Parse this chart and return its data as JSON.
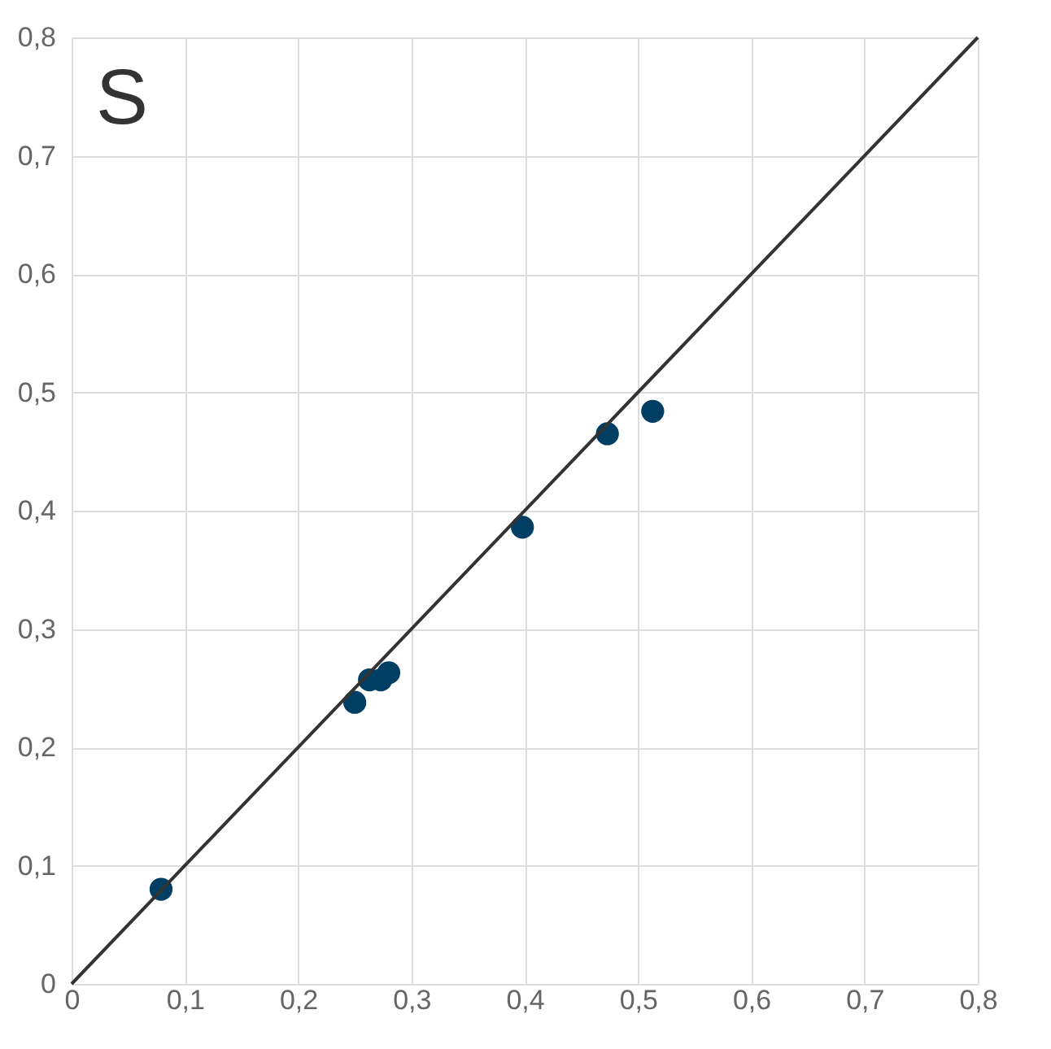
{
  "chart_data": {
    "type": "scatter",
    "annotations": [
      "S"
    ],
    "xlim": [
      0,
      0.8
    ],
    "ylim": [
      0,
      0.8
    ],
    "xticks": [
      0,
      {
        "value": 0.1,
        "label": "0,1"
      },
      {
        "value": 0.2,
        "label": "0,2"
      },
      {
        "value": 0.3,
        "label": "0,3"
      },
      {
        "value": 0.4,
        "label": "0,4"
      },
      {
        "value": 0.5,
        "label": "0,5"
      },
      {
        "value": 0.6,
        "label": "0,6"
      },
      {
        "value": 0.7,
        "label": "0,7"
      },
      {
        "value": 0.8,
        "label": "0,8"
      }
    ],
    "yticks": [
      0,
      {
        "value": 0.1,
        "label": "0,1"
      },
      {
        "value": 0.2,
        "label": "0,2"
      },
      {
        "value": 0.3,
        "label": "0,3"
      },
      {
        "value": 0.4,
        "label": "0,4"
      },
      {
        "value": 0.5,
        "label": "0,5"
      },
      {
        "value": 0.6,
        "label": "0,6"
      },
      {
        "value": 0.7,
        "label": "0,7"
      },
      {
        "value": 0.8,
        "label": "0,8"
      }
    ],
    "grid": true,
    "series": [
      {
        "marker": "circle",
        "color": "#003f63",
        "x": [
          0.079,
          0.25,
          0.263,
          0.273,
          0.28,
          0.398,
          0.473,
          0.513
        ],
        "values": [
          0.08,
          0.238,
          0.257,
          0.257,
          0.263,
          0.386,
          0.465,
          0.484
        ]
      },
      {
        "type": "line",
        "marker": "none",
        "color": "#333333",
        "x": [
          0,
          0.8
        ],
        "values": [
          0,
          0.8
        ]
      }
    ]
  }
}
